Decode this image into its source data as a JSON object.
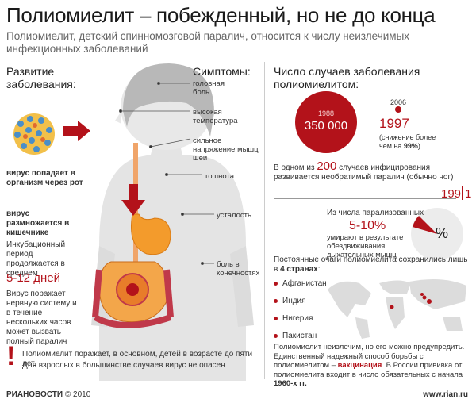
{
  "header": {
    "title": "Полиомиелит – побежденный, но не до конца",
    "subtitle": "Полиомиелит, детский спинномозговой паралич, относится к числу неизлечимых инфекционных заболеваний"
  },
  "left": {
    "heading_development": "Развитие заболевания:",
    "heading_symptoms": "Симптомы:",
    "virus_mouth": "вирус попадает в организм через рот",
    "virus_intestine": "вирус размножается в кишечнике",
    "incubation_text": "Инкубационный период продолжается в среднем",
    "incubation_days": "5-12 дней",
    "nerve_text": "Вирус поражает нервную систему и в течение нескольких часов может вызвать полный паралич",
    "symptoms": [
      "головная боль",
      "высокая температура",
      "сильное напряжение мышц шеи",
      "тошнота",
      "усталость",
      "боль в конечностях"
    ],
    "warning_line1": "Полиомиелит поражает, в основном, детей в возрасте до пяти лет.",
    "warning_line2": "Для взрослых в большинстве случаев вирус не опасен",
    "exclamation": "!"
  },
  "right": {
    "heading_cases": "Число случаев заболевания полиомиелитом:",
    "year_1988": "1988",
    "value_1988": "350 000",
    "year_2006": "2006",
    "value_2006": "1997",
    "decrease_text_pre": "(снижение более чем на ",
    "decrease_value": "99%",
    "decrease_text_post": ")",
    "one_in_pre": "В одном из ",
    "one_in_number": "200",
    "one_in_post": " случаев инфицирования развивается необратимый паралич (обычно ног)",
    "ratio_left": "199",
    "ratio_right": "1",
    "paralyzed_intro": "Из числа парализованных",
    "paralyzed_percent": "5-10%",
    "paralyzed_text": "умирают в результате обездвиживания дыхательных мышц",
    "percent_sign": "%",
    "hotspots_pre": "Постоянные очаги полиомиелита сохранились лишь в ",
    "hotspots_bold": "4 странах",
    "hotspots_post": ":",
    "countries": [
      "Афганистан",
      "Индия",
      "Нигерия",
      "Пакистан"
    ],
    "prevention_text": "Полиомиелит неизлечим, но его можно предупредить. Единственный надежный способ борьбы с полиомиелитом –",
    "prevention_bold": "вакцинация",
    "prevention_text2": ". В России прививка от полиомиелита входит в число обязательных с начала",
    "prevention_year": "1960-х гг."
  },
  "footer": {
    "brand": "РИАНОВОСТИ",
    "copyright": "© 2010",
    "site": "www.rian.ru"
  },
  "colors": {
    "accent": "#b3121a",
    "pink_arrow": "#c0394a",
    "body_gray": "#e2e2e2",
    "hair": "#b5b5b5"
  }
}
